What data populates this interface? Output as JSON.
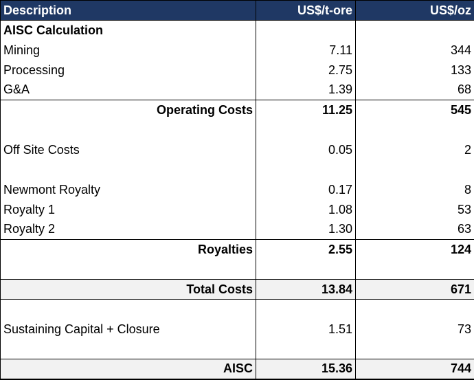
{
  "table": {
    "headers": [
      "Description",
      "US$/t-ore",
      "US$/oz"
    ],
    "rows": [
      {
        "desc": "AISC Calculation",
        "t": "",
        "oz": ""
      },
      {
        "desc": "Mining",
        "t": "7.11",
        "oz": "344"
      },
      {
        "desc": "Processing",
        "t": "2.75",
        "oz": "133"
      },
      {
        "desc": "G&A",
        "t": "1.39",
        "oz": "68"
      },
      {
        "desc": "Operating Costs",
        "t": "11.25",
        "oz": "545"
      },
      {
        "desc": "",
        "t": "",
        "oz": ""
      },
      {
        "desc": "Off Site Costs",
        "t": "0.05",
        "oz": "2"
      },
      {
        "desc": "",
        "t": "",
        "oz": ""
      },
      {
        "desc": "Newmont Royalty",
        "t": "0.17",
        "oz": "8"
      },
      {
        "desc": "Royalty 1",
        "t": "1.08",
        "oz": "53"
      },
      {
        "desc": "Royalty 2",
        "t": "1.30",
        "oz": "63"
      },
      {
        "desc": "Royalties",
        "t": "2.55",
        "oz": "124"
      },
      {
        "desc": "",
        "t": "",
        "oz": ""
      },
      {
        "desc": "Total Costs",
        "t": "13.84",
        "oz": "671"
      },
      {
        "desc": "",
        "t": "",
        "oz": ""
      },
      {
        "desc": "Sustaining Capital + Closure",
        "t": "1.51",
        "oz": "73"
      },
      {
        "desc": "",
        "t": "",
        "oz": ""
      },
      {
        "desc": "AISC",
        "t": "15.36",
        "oz": "744"
      }
    ]
  },
  "colors": {
    "header_bg": "#1f3864",
    "header_text": "#ffffff",
    "total_row_bg": "#f2f2f2"
  }
}
